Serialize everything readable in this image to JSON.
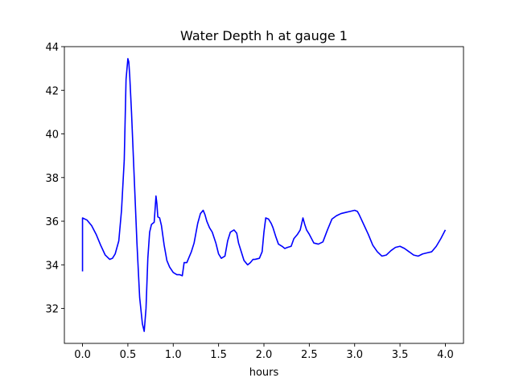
{
  "chart_data": {
    "type": "line",
    "title": "Water Depth h at gauge 1",
    "xlabel": "hours",
    "ylabel": "",
    "xlim": [
      -0.2,
      4.2
    ],
    "ylim": [
      30.4,
      44.0
    ],
    "xticks": [
      0.0,
      0.5,
      1.0,
      1.5,
      2.0,
      2.5,
      3.0,
      3.5,
      4.0
    ],
    "xtick_labels": [
      "0.0",
      "0.5",
      "1.0",
      "1.5",
      "2.0",
      "2.5",
      "3.0",
      "3.5",
      "4.0"
    ],
    "yticks": [
      32,
      34,
      36,
      38,
      40,
      42,
      44
    ],
    "ytick_labels": [
      "32",
      "34",
      "36",
      "38",
      "40",
      "42",
      "44"
    ],
    "grid": false,
    "series": [
      {
        "color": "#0000ff",
        "x": [
          0.0,
          0.0,
          0.05,
          0.1,
          0.15,
          0.2,
          0.25,
          0.3,
          0.33,
          0.36,
          0.4,
          0.43,
          0.46,
          0.48,
          0.5,
          0.51,
          0.52,
          0.54,
          0.57,
          0.6,
          0.63,
          0.66,
          0.68,
          0.7,
          0.72,
          0.74,
          0.76,
          0.79,
          0.81,
          0.82,
          0.83,
          0.85,
          0.87,
          0.9,
          0.93,
          0.96,
          1.0,
          1.04,
          1.07,
          1.1,
          1.12,
          1.15,
          1.18,
          1.2,
          1.23,
          1.27,
          1.3,
          1.33,
          1.35,
          1.37,
          1.4,
          1.43,
          1.47,
          1.5,
          1.53,
          1.57,
          1.6,
          1.63,
          1.67,
          1.7,
          1.72,
          1.75,
          1.78,
          1.82,
          1.85,
          1.88,
          1.9,
          1.95,
          1.98,
          2.0,
          2.02,
          2.05,
          2.08,
          2.1,
          2.13,
          2.16,
          2.2,
          2.23,
          2.26,
          2.3,
          2.33,
          2.37,
          2.4,
          2.43,
          2.45,
          2.47,
          2.5,
          2.55,
          2.6,
          2.65,
          2.7,
          2.75,
          2.8,
          2.85,
          2.9,
          2.95,
          3.0,
          3.03,
          3.05,
          3.1,
          3.15,
          3.2,
          3.25,
          3.3,
          3.35,
          3.4,
          3.45,
          3.5,
          3.55,
          3.6,
          3.65,
          3.7,
          3.75,
          3.8,
          3.85,
          3.9,
          3.95,
          4.0
        ],
        "y": [
          33.7,
          36.15,
          36.05,
          35.8,
          35.4,
          34.9,
          34.45,
          34.25,
          34.3,
          34.5,
          35.1,
          36.5,
          38.8,
          42.5,
          43.45,
          43.3,
          42.7,
          41.0,
          38.0,
          35.0,
          32.5,
          31.3,
          30.95,
          32.0,
          34.3,
          35.5,
          35.85,
          35.95,
          37.15,
          36.8,
          36.2,
          36.15,
          35.8,
          34.9,
          34.2,
          33.9,
          33.65,
          33.55,
          33.55,
          33.5,
          34.1,
          34.1,
          34.4,
          34.6,
          35.0,
          35.9,
          36.35,
          36.5,
          36.3,
          36.0,
          35.7,
          35.5,
          35.0,
          34.5,
          34.3,
          34.4,
          35.1,
          35.5,
          35.6,
          35.45,
          35.0,
          34.6,
          34.2,
          34.0,
          34.1,
          34.25,
          34.25,
          34.3,
          34.6,
          35.5,
          36.15,
          36.1,
          35.9,
          35.7,
          35.3,
          34.95,
          34.85,
          34.75,
          34.8,
          34.85,
          35.2,
          35.4,
          35.6,
          36.15,
          35.85,
          35.6,
          35.4,
          35.0,
          34.95,
          35.05,
          35.6,
          36.1,
          36.25,
          36.35,
          36.4,
          36.45,
          36.5,
          36.45,
          36.3,
          35.85,
          35.4,
          34.9,
          34.6,
          34.4,
          34.45,
          34.65,
          34.8,
          34.85,
          34.75,
          34.6,
          34.45,
          34.4,
          34.5,
          34.55,
          34.6,
          34.85,
          35.2,
          35.6
        ]
      }
    ]
  }
}
